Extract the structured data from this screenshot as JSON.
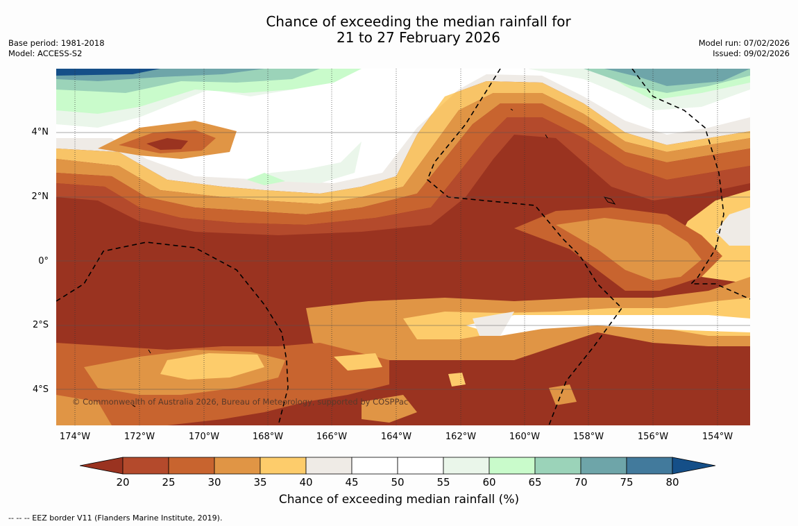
{
  "title": {
    "line1": "Chance of exceeding the median rainfall for",
    "line2": "21 to 27 February 2026"
  },
  "meta_left": {
    "base_period": "Base period: 1981-2018",
    "model": "Model: ACCESS-S2"
  },
  "meta_right": {
    "model_run": "Model run: 07/02/2026",
    "issued": "Issued: 09/02/2026"
  },
  "map": {
    "lat_labels": [
      "4°N",
      "2°N",
      "0°",
      "2°S",
      "4°S"
    ],
    "lon_labels": [
      "174°W",
      "172°W",
      "170°W",
      "168°W",
      "166°W",
      "164°W",
      "162°W",
      "160°W",
      "158°W",
      "156°W",
      "154°W"
    ],
    "copyright": "© Commonwealth of Australia 2026, Bureau of Meteorology, supported by COSPPac"
  },
  "colorbar": {
    "ticks": [
      "20",
      "25",
      "30",
      "35",
      "40",
      "45",
      "50",
      "55",
      "60",
      "65",
      "70",
      "75",
      "80"
    ],
    "colors": [
      "#9a3320",
      "#b44a2c",
      "#c8642f",
      "#e09545",
      "#fdcc6b",
      "#efebe6",
      "#ffffff",
      "#ffffff",
      "#eaf6ea",
      "#c9fbcb",
      "#9bd3b9",
      "#6ea5a9",
      "#427a9c",
      "#154f88"
    ],
    "label": "Chance of exceeding median rainfall (%)"
  },
  "footer": "--  --  -- EEZ border V11 (Flanders Marine Institute, 2019)."
}
